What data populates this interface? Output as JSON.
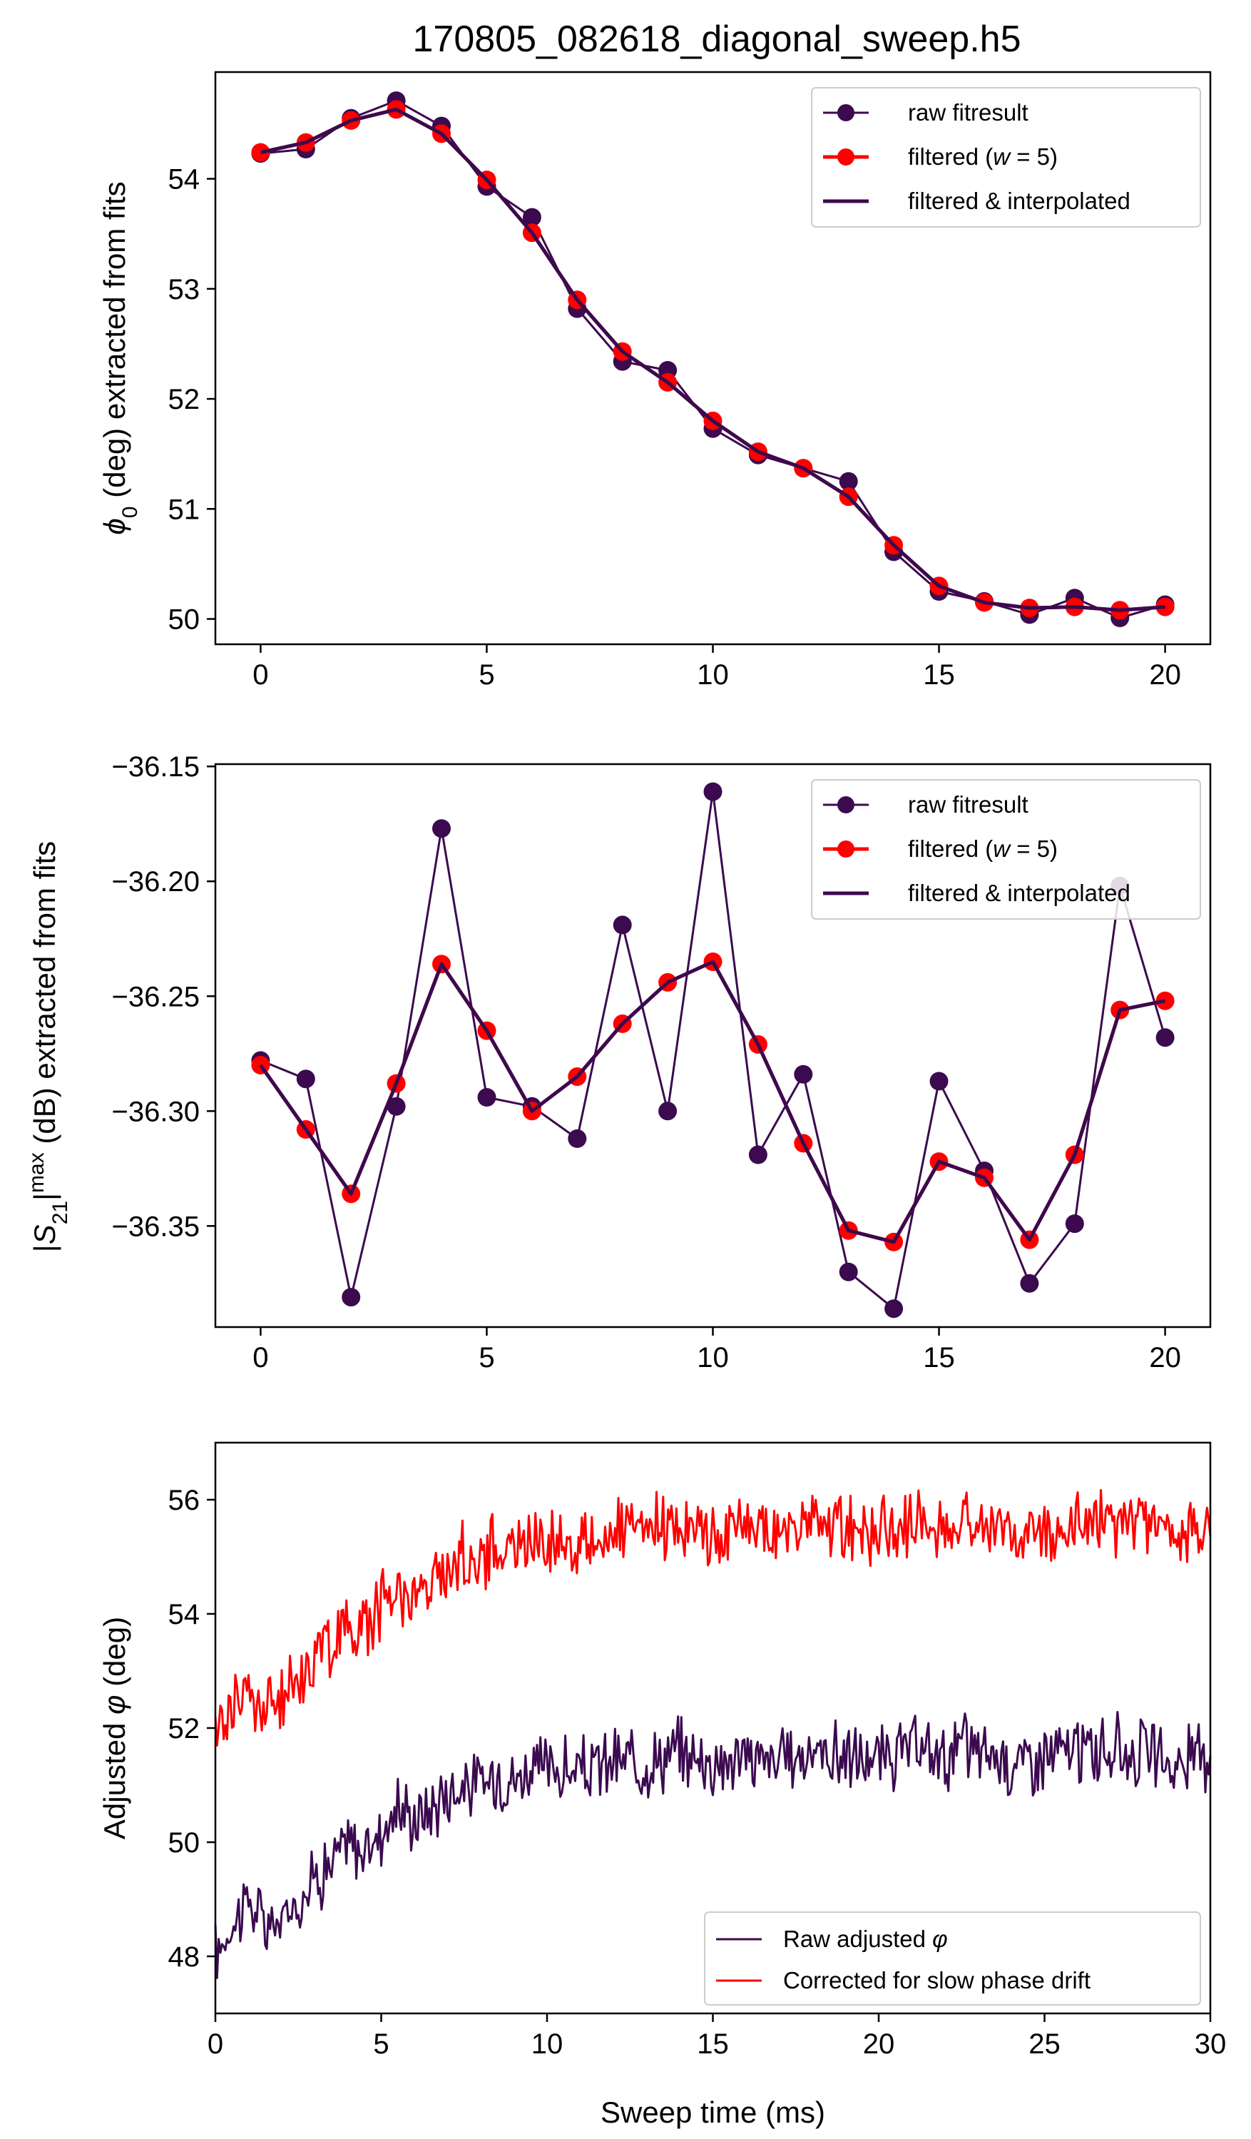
{
  "figure": {
    "title": "170805_082618_diagonal_sweep.h5"
  },
  "colors": {
    "raw": "#3b0a4f",
    "filtered": "#ff0000",
    "interp": "#3b0a4f",
    "corrected": "#ff0000"
  },
  "chart_data": [
    {
      "type": "line",
      "title": "170805_082618_diagonal_sweep.h5",
      "xlabel": "",
      "ylabel": "ϕ0 (deg) extracted from fits",
      "ylabel_parts": {
        "symbol": "ϕ",
        "sub": "0",
        "rest": " (deg) extracted from fits"
      },
      "xlim": [
        -1,
        21
      ],
      "ylim": [
        49.77,
        54.97
      ],
      "xticks": [
        0,
        5,
        10,
        15,
        20
      ],
      "yticks": [
        50,
        51,
        52,
        53,
        54
      ],
      "legend_position": "top-right",
      "legend": [
        "raw fitresult",
        "filtered (w = 5)",
        "filtered & interpolated"
      ],
      "series": [
        {
          "name": "raw fitresult",
          "x": [
            0,
            1,
            2,
            3,
            4,
            5,
            6,
            7,
            8,
            9,
            10,
            11,
            12,
            13,
            14,
            15,
            16,
            17,
            18,
            19,
            20
          ],
          "values": [
            54.23,
            54.27,
            54.55,
            54.71,
            54.48,
            53.93,
            53.65,
            52.82,
            52.34,
            52.26,
            51.73,
            51.49,
            51.37,
            51.25,
            50.61,
            50.25,
            50.16,
            50.04,
            50.19,
            50.01,
            50.13
          ]
        },
        {
          "name": "filtered (w = 5)",
          "x": [
            0,
            1,
            2,
            3,
            4,
            5,
            6,
            7,
            8,
            9,
            10,
            11,
            12,
            13,
            14,
            15,
            16,
            17,
            18,
            19,
            20
          ],
          "values": [
            54.24,
            54.33,
            54.53,
            54.63,
            54.41,
            53.99,
            53.51,
            52.9,
            52.43,
            52.15,
            51.8,
            51.52,
            51.37,
            51.11,
            50.67,
            50.3,
            50.15,
            50.1,
            50.11,
            50.08,
            50.11
          ]
        },
        {
          "name": "filtered & interpolated",
          "x": [
            0,
            1,
            2,
            3,
            4,
            5,
            6,
            7,
            8,
            9,
            10,
            11,
            12,
            13,
            14,
            15,
            16,
            17,
            18,
            19,
            20
          ],
          "values": [
            54.24,
            54.33,
            54.53,
            54.63,
            54.41,
            53.99,
            53.51,
            52.9,
            52.43,
            52.15,
            51.8,
            51.52,
            51.37,
            51.11,
            50.67,
            50.3,
            50.15,
            50.1,
            50.11,
            50.08,
            50.11
          ]
        }
      ]
    },
    {
      "type": "line",
      "title": "",
      "xlabel": "",
      "ylabel": "|S21|max (dB) extracted from fits",
      "ylabel_parts": {
        "pre": "|",
        "symbol": "S",
        "sub": "21",
        "close": "|",
        "sup": "max",
        "rest": " (dB) extracted from fits"
      },
      "xlim": [
        -1,
        21
      ],
      "ylim": [
        -36.394,
        -36.149
      ],
      "xticks": [
        0,
        5,
        10,
        15,
        20
      ],
      "yticks": [
        -36.35,
        -36.3,
        -36.25,
        -36.2,
        -36.15
      ],
      "yticklabels": [
        "−36.35",
        "−36.30",
        "−36.25",
        "−36.20",
        "−36.15"
      ],
      "legend_position": "top-right",
      "legend": [
        "raw fitresult",
        "filtered (w = 5)",
        "filtered & interpolated"
      ],
      "series": [
        {
          "name": "raw fitresult",
          "x": [
            0,
            1,
            2,
            3,
            4,
            5,
            6,
            7,
            8,
            9,
            10,
            11,
            12,
            13,
            14,
            15,
            16,
            17,
            18,
            19,
            20
          ],
          "values": [
            -36.278,
            -36.286,
            -36.381,
            -36.298,
            -36.177,
            -36.294,
            -36.298,
            -36.312,
            -36.219,
            -36.3,
            -36.161,
            -36.319,
            -36.284,
            -36.37,
            -36.386,
            -36.287,
            -36.326,
            -36.375,
            -36.349,
            -36.202,
            -36.268
          ]
        },
        {
          "name": "filtered (w = 5)",
          "x": [
            0,
            1,
            2,
            3,
            4,
            5,
            6,
            7,
            8,
            9,
            10,
            11,
            12,
            13,
            14,
            15,
            16,
            17,
            18,
            19,
            20
          ],
          "values": [
            -36.28,
            -36.308,
            -36.336,
            -36.288,
            -36.236,
            -36.265,
            -36.3,
            -36.285,
            -36.262,
            -36.244,
            -36.235,
            -36.271,
            -36.314,
            -36.352,
            -36.357,
            -36.322,
            -36.329,
            -36.356,
            -36.319,
            -36.256,
            -36.252
          ]
        },
        {
          "name": "filtered & interpolated",
          "x": [
            0,
            1,
            2,
            3,
            4,
            5,
            6,
            7,
            8,
            9,
            10,
            11,
            12,
            13,
            14,
            15,
            16,
            17,
            18,
            19,
            20
          ],
          "values": [
            -36.28,
            -36.308,
            -36.336,
            -36.288,
            -36.236,
            -36.265,
            -36.3,
            -36.285,
            -36.262,
            -36.244,
            -36.235,
            -36.271,
            -36.314,
            -36.352,
            -36.357,
            -36.322,
            -36.329,
            -36.356,
            -36.319,
            -36.256,
            -36.252
          ]
        }
      ]
    },
    {
      "type": "line",
      "title": "",
      "xlabel": "Sweep time (ms)",
      "ylabel": "Adjusted φ (deg)",
      "ylabel_parts": {
        "pre": "Adjusted ",
        "symbol": "φ",
        "rest": " (deg)"
      },
      "xlim": [
        0,
        30
      ],
      "ylim": [
        47.0,
        57.0
      ],
      "xticks": [
        0,
        5,
        10,
        15,
        20,
        25,
        30
      ],
      "yticks": [
        48,
        50,
        52,
        54,
        56
      ],
      "legend_position": "bottom-right",
      "legend": [
        "Raw adjusted φ",
        "Corrected for slow phase drift"
      ],
      "series": [
        {
          "name": "Raw adjusted φ",
          "x": [
            0,
            0.5,
            1,
            1.5,
            2,
            2.5,
            3,
            3.5,
            4,
            4.5,
            5,
            5.5,
            6,
            6.5,
            7,
            7.5,
            8,
            8.5,
            9,
            9.5,
            10,
            11,
            12,
            13,
            14,
            14.5,
            15,
            16,
            17,
            18,
            19,
            20,
            21,
            22,
            22.5,
            23,
            24,
            25,
            26,
            27,
            28,
            29,
            30
          ],
          "values": [
            48.0,
            48.6,
            49.0,
            48.5,
            48.6,
            49.0,
            49.4,
            49.6,
            50.0,
            49.8,
            50.2,
            50.6,
            50.4,
            50.6,
            50.9,
            51.0,
            51.0,
            51.2,
            51.1,
            51.3,
            51.3,
            51.2,
            51.4,
            51.4,
            51.6,
            51.5,
            51.4,
            51.5,
            51.4,
            51.6,
            51.5,
            51.4,
            51.6,
            51.5,
            51.7,
            51.6,
            51.4,
            51.5,
            51.6,
            51.6,
            51.6,
            51.3,
            51.6
          ]
        },
        {
          "name": "Corrected for slow phase drift",
          "x": [
            0,
            0.5,
            1,
            1.5,
            2,
            2.5,
            3,
            3.5,
            4,
            4.5,
            5,
            5.5,
            6,
            6.5,
            7,
            7.5,
            8,
            8.5,
            9,
            9.5,
            10,
            11,
            12,
            13,
            14,
            14.5,
            15,
            16,
            17,
            18,
            19,
            20,
            21,
            22,
            22.5,
            23,
            24,
            25,
            26,
            27,
            28,
            29,
            30
          ],
          "values": [
            51.9,
            52.5,
            52.6,
            52.3,
            52.5,
            52.9,
            53.3,
            53.5,
            53.8,
            53.8,
            54.2,
            54.5,
            54.3,
            54.5,
            54.8,
            55.0,
            55.0,
            55.2,
            55.1,
            55.3,
            55.3,
            55.2,
            55.4,
            55.4,
            55.6,
            55.5,
            55.4,
            55.5,
            55.4,
            55.6,
            55.5,
            55.4,
            55.6,
            55.5,
            55.7,
            55.6,
            55.4,
            55.5,
            55.6,
            55.6,
            55.6,
            55.3,
            55.6
          ]
        }
      ]
    }
  ]
}
